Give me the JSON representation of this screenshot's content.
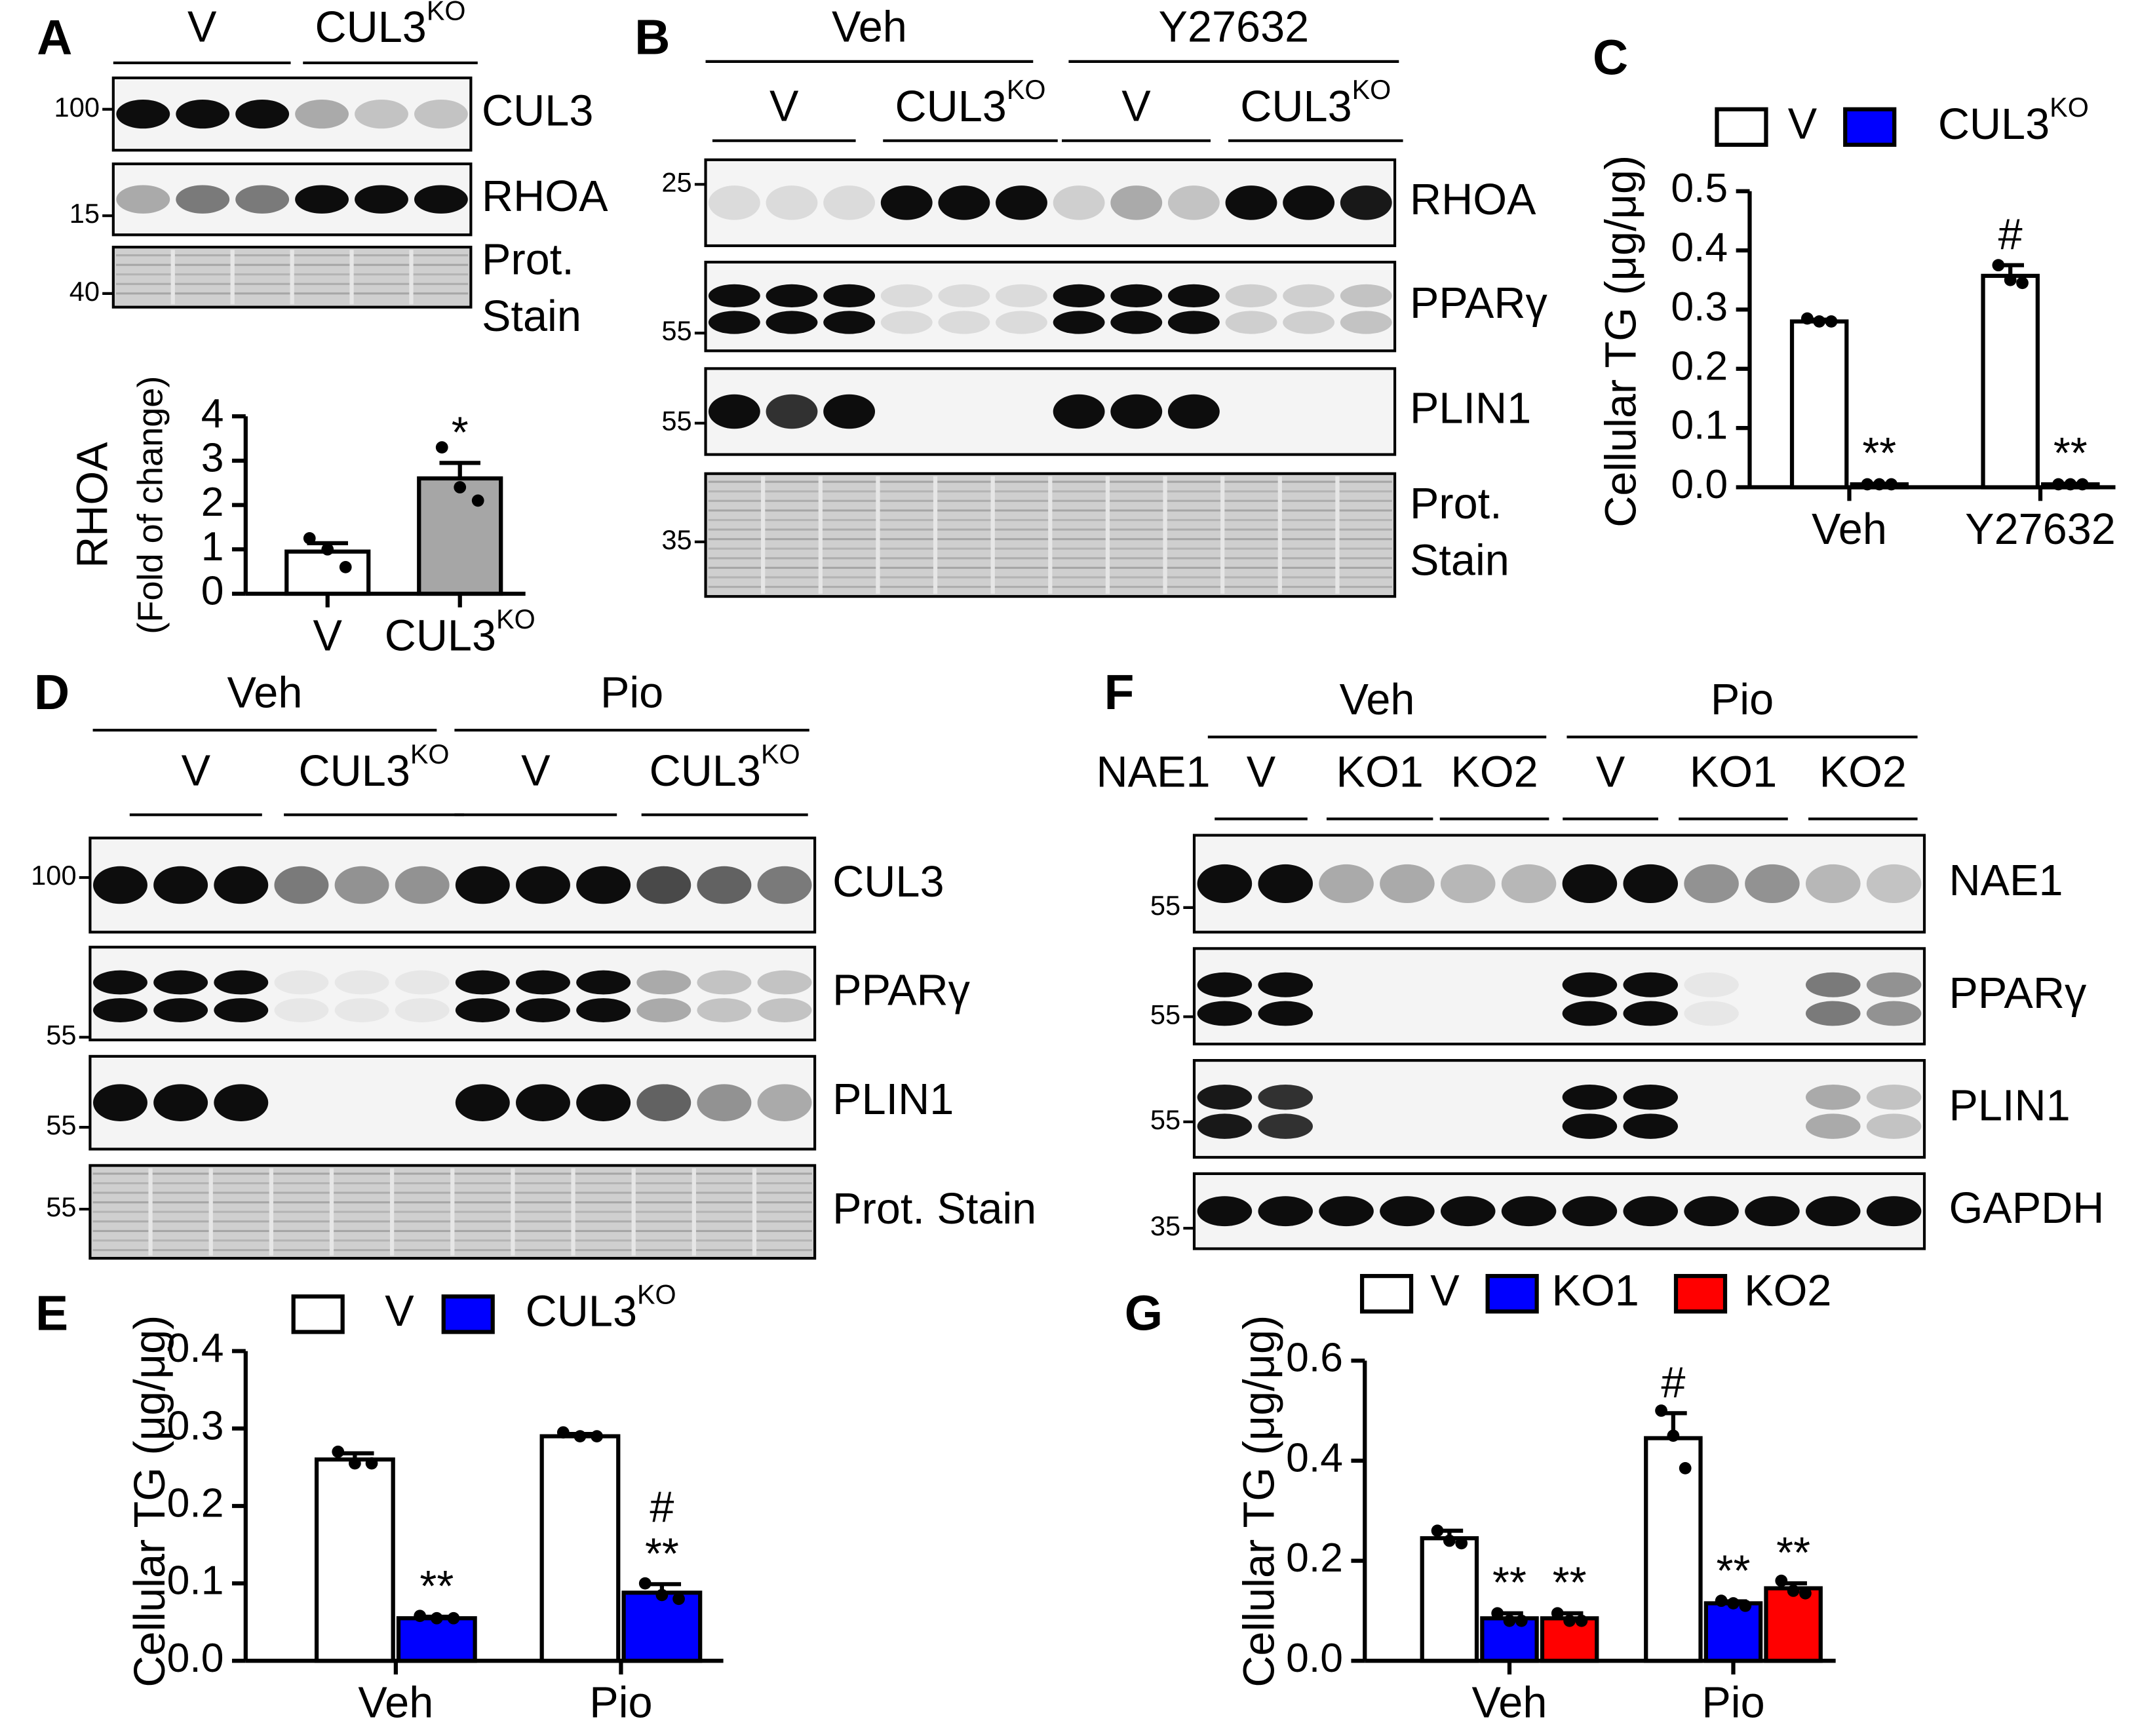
{
  "panel_labels": [
    "A",
    "B",
    "C",
    "D",
    "E",
    "F",
    "G"
  ],
  "blots": [
    {
      "treatments": [],
      "groups": [
        "V",
        {
          "text": "CUL3",
          "sup": "KO"
        }
      ],
      "rows": [
        {
          "label": "CUL3",
          "marker": "100"
        },
        {
          "label": "RHOA",
          "marker": "15"
        },
        {
          "label": [
            "Prot.",
            "Stain"
          ],
          "marker": "40"
        }
      ]
    },
    {
      "treatments": [
        "Veh",
        "Y27632"
      ],
      "groups": [
        "V",
        {
          "text": "CUL3",
          "sup": "KO"
        },
        "V",
        {
          "text": "CUL3",
          "sup": "KO"
        }
      ],
      "rows": [
        {
          "label": "RHOA",
          "marker": "25"
        },
        {
          "label": "PPARγ",
          "marker": "55"
        },
        {
          "label": "PLIN1",
          "marker": "55"
        },
        {
          "label": [
            "Prot.",
            "Stain"
          ],
          "marker": "35"
        }
      ]
    },
    {
      "treatments": [
        "Veh",
        "Pio"
      ],
      "groups": [
        "V",
        {
          "text": "CUL3",
          "sup": "KO"
        },
        "V",
        {
          "text": "CUL3",
          "sup": "KO"
        }
      ],
      "rows": [
        {
          "label": "CUL3",
          "marker": "100"
        },
        {
          "label": "PPARγ",
          "marker": "55"
        },
        {
          "label": "PLIN1",
          "marker": "55"
        },
        {
          "label": "Prot. Stain",
          "marker": "55"
        }
      ]
    },
    {
      "treatments": [
        "Veh",
        "Pio"
      ],
      "row_title": "NAE1",
      "groups": [
        "V",
        "KO1",
        "KO2",
        "V",
        "KO1",
        "KO2"
      ],
      "rows": [
        {
          "label": "NAE1",
          "marker": "55"
        },
        {
          "label": "PPARγ",
          "marker": "55"
        },
        {
          "label": "PLIN1",
          "marker": "55"
        },
        {
          "label": "GAPDH",
          "marker": "35"
        }
      ]
    }
  ],
  "chart_data": [
    {
      "type": "bar",
      "ylabel": [
        "RHOA",
        "(Fold of change)"
      ],
      "categories": [
        "V",
        {
          "text": "CUL3",
          "sup": "KO"
        }
      ],
      "values": [
        0.95,
        2.6
      ],
      "errors": [
        0.19,
        0.35
      ],
      "points": [
        [
          1.25,
          1.0,
          0.6
        ],
        [
          3.3,
          2.4,
          2.1
        ]
      ],
      "colors": [
        "#ffffff",
        "#a6a6a6"
      ],
      "annotations": [
        null,
        "*"
      ],
      "ylim": [
        0,
        4
      ],
      "yticks": [
        0,
        1,
        2,
        3,
        4
      ]
    },
    {
      "type": "bar",
      "ylabel": "Cellular TG (μg/μg)",
      "categories": [
        "Veh",
        "Y27632"
      ],
      "series": [
        {
          "name": "V",
          "color": "#ffffff",
          "values": [
            0.28,
            0.357
          ],
          "errors": [
            0.003,
            0.018
          ],
          "points": [
            [
              0.285,
              0.28,
              0.28
            ],
            [
              0.375,
              0.35,
              0.345
            ]
          ],
          "annotations": [
            null,
            "#"
          ]
        },
        {
          "name": {
            "text": "CUL3",
            "sup": "KO"
          },
          "color": "#0000ff",
          "values": [
            0.005,
            0.005
          ],
          "errors": [
            0.001,
            0.001
          ],
          "points": [
            [
              0.005,
              0.005,
              0.005
            ],
            [
              0.005,
              0.005,
              0.005
            ]
          ],
          "annotations": [
            "**",
            "**"
          ]
        }
      ],
      "ylim": [
        0,
        0.5
      ],
      "yticks": [
        {
          "value": 0,
          "label": "0.0"
        },
        0.1,
        0.2,
        0.3,
        0.4,
        0.5
      ]
    },
    {
      "type": "bar",
      "ylabel": "Cellular TG (μg/μg)",
      "categories": [
        "Veh",
        "Pio"
      ],
      "series": [
        {
          "name": "V",
          "color": "#ffffff",
          "values": [
            0.26,
            0.29
          ],
          "errors": [
            0.008,
            0.003
          ],
          "points": [
            [
              0.27,
              0.255,
              0.255
            ],
            [
              0.295,
              0.29,
              0.29
            ]
          ],
          "annotations": [
            null,
            null
          ]
        },
        {
          "name": {
            "text": "CUL3",
            "sup": "KO"
          },
          "color": "#0000ff",
          "values": [
            0.055,
            0.088
          ],
          "errors": [
            0.002,
            0.011
          ],
          "points": [
            [
              0.058,
              0.055,
              0.055
            ],
            [
              0.1,
              0.085,
              0.08
            ]
          ],
          "annotations": [
            "**",
            [
              "#",
              "**"
            ]
          ]
        }
      ],
      "ylim": [
        0,
        0.4
      ],
      "yticks": [
        {
          "value": 0,
          "label": "0.0"
        },
        0.1,
        0.2,
        0.3,
        0.4
      ]
    },
    {
      "type": "bar",
      "ylabel": "Cellular TG (μg/μg)",
      "categories": [
        "Veh",
        "Pio"
      ],
      "series": [
        {
          "name": "V",
          "color": "#ffffff",
          "values": [
            0.245,
            0.445
          ],
          "errors": [
            0.015,
            0.05
          ],
          "points": [
            [
              0.26,
              0.24,
              0.235
            ],
            [
              0.5,
              0.45,
              0.385
            ]
          ],
          "annotations": [
            null,
            "#"
          ]
        },
        {
          "name": "KO1",
          "color": "#0000ff",
          "values": [
            0.085,
            0.115
          ],
          "errors": [
            0.01,
            0.004
          ],
          "points": [
            [
              0.095,
              0.08,
              0.08
            ],
            [
              0.12,
              0.115,
              0.11
            ]
          ],
          "annotations": [
            "**",
            "**"
          ]
        },
        {
          "name": "KO2",
          "color": "#ff0000",
          "values": [
            0.085,
            0.145
          ],
          "errors": [
            0.01,
            0.01
          ],
          "points": [
            [
              0.095,
              0.08,
              0.08
            ],
            [
              0.16,
              0.14,
              0.135
            ]
          ],
          "annotations": [
            "**",
            "**"
          ]
        }
      ],
      "ylim": [
        0,
        0.6
      ],
      "yticks": [
        {
          "value": 0,
          "label": "0.0"
        },
        0.2,
        0.4,
        0.6
      ]
    }
  ]
}
